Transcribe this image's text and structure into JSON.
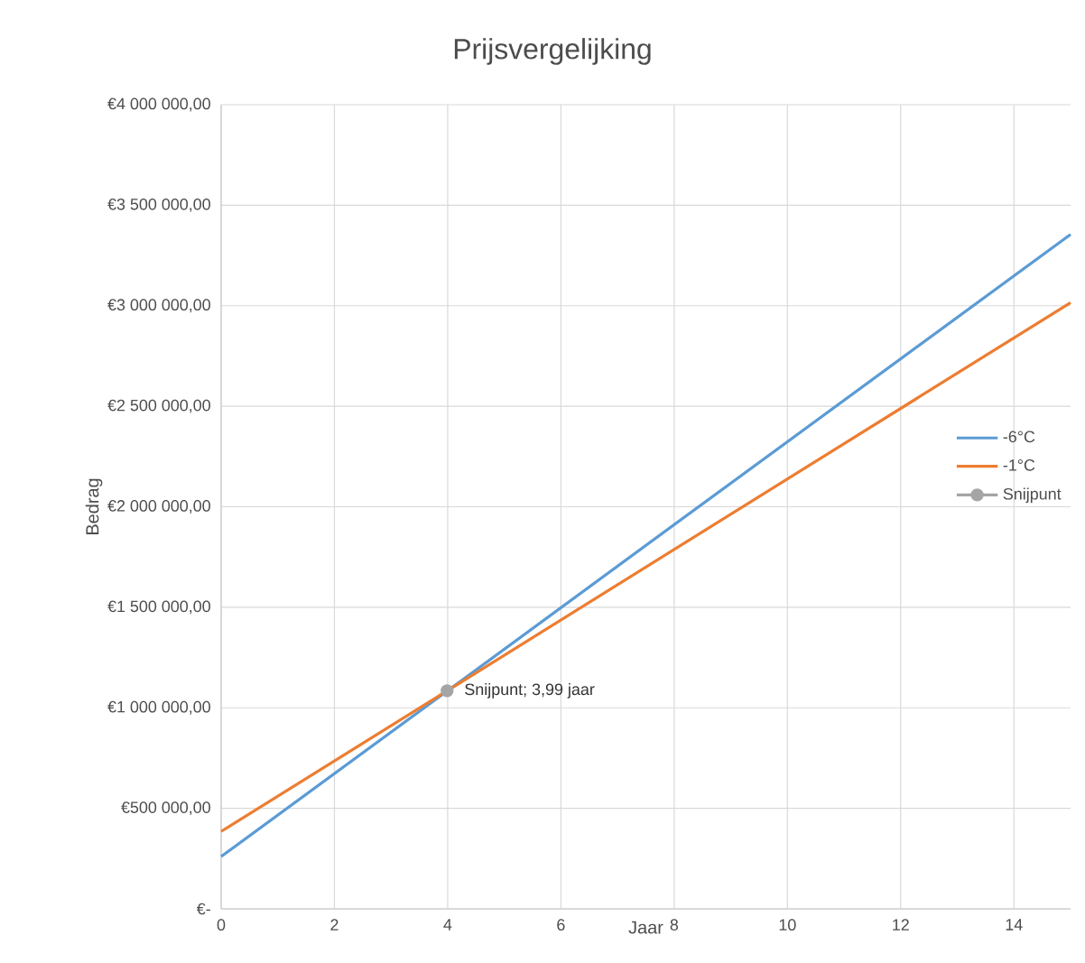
{
  "chart_data": {
    "type": "line",
    "title": "Prijsvergelijking",
    "xlabel": "Jaar",
    "ylabel": "Bedrag",
    "xlim": [
      0,
      15
    ],
    "xticks": [
      0,
      2,
      4,
      6,
      8,
      10,
      12,
      14
    ],
    "ylim": [
      0,
      4000000
    ],
    "yticks": [
      {
        "value": 0,
        "label": "€-"
      },
      {
        "value": 500000,
        "label": "€500 000,00"
      },
      {
        "value": 1000000,
        "label": "€1 000 000,00"
      },
      {
        "value": 1500000,
        "label": "€1 500 000,00"
      },
      {
        "value": 2000000,
        "label": "€2 000 000,00"
      },
      {
        "value": 2500000,
        "label": "€2 500 000,00"
      },
      {
        "value": 3000000,
        "label": "€3 000 000,00"
      },
      {
        "value": 3500000,
        "label": "€3 500 000,00"
      },
      {
        "value": 4000000,
        "label": "€4 000 000,00"
      }
    ],
    "grid": true,
    "legend": "right",
    "series": [
      {
        "name": "-6°C",
        "color": "#5b9bd5",
        "x": [
          0,
          15
        ],
        "values": [
          260000,
          3355000
        ],
        "marker": "none"
      },
      {
        "name": "-1°C",
        "color": "#ed7d31",
        "x": [
          0,
          15
        ],
        "values": [
          385000,
          3015000
        ],
        "marker": "none"
      },
      {
        "name": "Snijpunt",
        "color": "#a5a5a5",
        "x": [
          3.99
        ],
        "values": [
          1085000
        ],
        "marker": "circle"
      }
    ],
    "annotations": [
      {
        "text": "Snijpunt; 3,99 jaar",
        "x": 3.99,
        "y": 1085000
      }
    ]
  }
}
